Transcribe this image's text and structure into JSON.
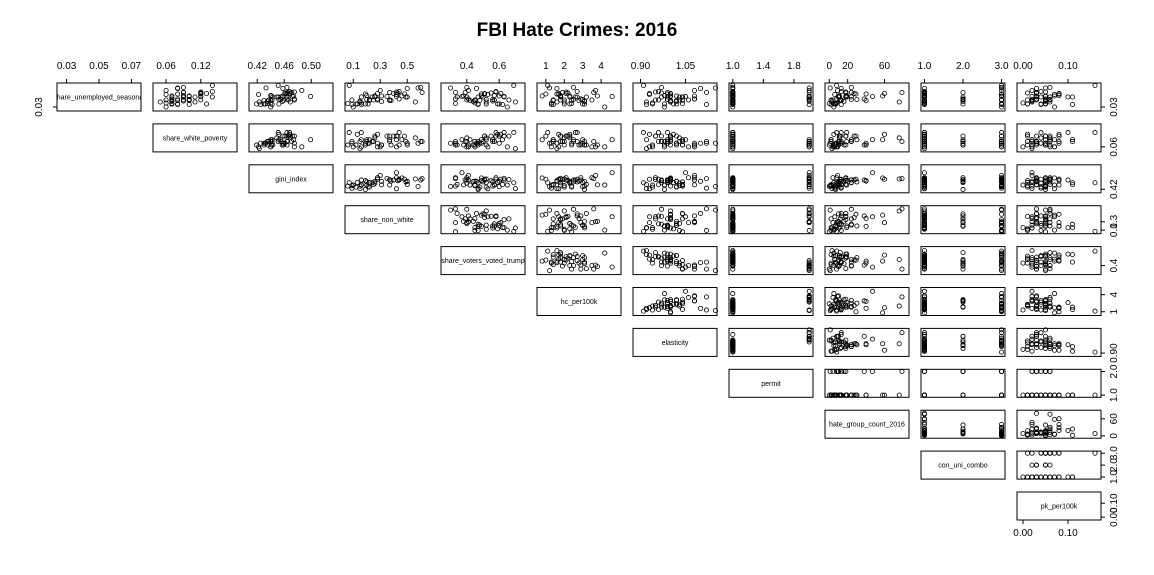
{
  "chart_data": {
    "type": "scatter",
    "subtype": "scatterplot-matrix-upper-triangle",
    "title": "FBI Hate Crimes: 2016",
    "variables": [
      {
        "name": "share_unemployed_seasonal",
        "display": "share_unemployed_seasonal",
        "range": [
          0.025,
          0.075
        ],
        "ticks": [
          0.03,
          0.05,
          0.07
        ],
        "tick_labels": [
          "0.03",
          "0.05",
          "0.07"
        ]
      },
      {
        "name": "share_white_poverty",
        "display": "share_white_poverty",
        "range": [
          0.04,
          0.18
        ],
        "ticks": [
          0.06,
          0.12
        ],
        "tick_labels": [
          "0.06",
          "0.12"
        ]
      },
      {
        "name": "gini_index",
        "display": "gini_index",
        "range": [
          0.41,
          0.53
        ],
        "ticks": [
          0.42,
          0.46,
          0.5
        ],
        "tick_labels": [
          "0.42",
          "0.46",
          "0.50"
        ]
      },
      {
        "name": "share_non_white",
        "display": "share_non_white",
        "range": [
          0.05,
          0.65
        ],
        "ticks": [
          0.1,
          0.3,
          0.5
        ],
        "tick_labels": [
          "0.1",
          "0.3",
          "0.5"
        ]
      },
      {
        "name": "share_voters_voted_trump",
        "display": "share_voters_voted_trump",
        "range": [
          0.25,
          0.75
        ],
        "ticks": [
          0.4,
          0.6
        ],
        "tick_labels": [
          "0.4",
          "0.6"
        ]
      },
      {
        "name": "hc_per100k",
        "display": "hc_per100k",
        "range": [
          0.6,
          5.0
        ],
        "ticks": [
          1,
          2,
          3,
          4
        ],
        "tick_labels": [
          "1",
          "2",
          "3",
          "4"
        ]
      },
      {
        "name": "elasticity",
        "display": "elasticity",
        "range": [
          0.88,
          1.15
        ],
        "ticks": [
          0.9,
          1.05
        ],
        "tick_labels": [
          "0.90",
          "1.05"
        ]
      },
      {
        "name": "permit",
        "display": "permit",
        "range": [
          0.97,
          2.03
        ],
        "ticks": [
          1.0,
          1.4,
          1.8
        ],
        "tick_labels": [
          "1.0",
          "1.4",
          "1.8"
        ]
      },
      {
        "name": "hate_group_count_2016",
        "display": "hate_group_count_2016",
        "range": [
          -3,
          85
        ],
        "ticks": [
          0,
          20,
          60
        ],
        "tick_labels": [
          "0",
          "20",
          "60"
        ]
      },
      {
        "name": "con_uni_combo",
        "display": "con_uni_combo",
        "range": [
          0.95,
          3.05
        ],
        "ticks": [
          1.0,
          2.0,
          3.0
        ],
        "tick_labels": [
          "1.0",
          "2.0",
          "3.0"
        ]
      },
      {
        "name": "pk_per100k",
        "display": "pk_per100k",
        "range": [
          -0.01,
          0.17
        ],
        "ticks": [
          0.0,
          0.1
        ],
        "tick_labels": [
          "0.00",
          "0.10"
        ]
      }
    ],
    "right_axis_ticks": [
      {
        "variable": "share_unemployed_seasonal",
        "ticks": [
          0.03
        ],
        "tick_labels": [
          "0.03"
        ]
      },
      {
        "variable": "share_white_poverty",
        "ticks": [
          0.06
        ],
        "tick_labels": [
          "0.06"
        ]
      },
      {
        "variable": "gini_index",
        "ticks": [
          0.42
        ],
        "tick_labels": [
          "0.42"
        ]
      },
      {
        "variable": "share_non_white",
        "ticks": [
          0.1,
          0.3
        ],
        "tick_labels": [
          "0.1",
          "0.3"
        ]
      },
      {
        "variable": "share_voters_voted_trump",
        "ticks": [
          0.4
        ],
        "tick_labels": [
          "0.4"
        ]
      },
      {
        "variable": "hc_per100k",
        "ticks": [
          1,
          4
        ],
        "tick_labels": [
          "1",
          "4"
        ]
      },
      {
        "variable": "elasticity",
        "ticks": [
          0.9
        ],
        "tick_labels": [
          "0.90"
        ]
      },
      {
        "variable": "permit",
        "ticks": [
          1.0,
          2.0
        ],
        "tick_labels": [
          "1.0",
          "2.0"
        ]
      },
      {
        "variable": "hate_group_count_2016",
        "ticks": [
          0,
          60
        ],
        "tick_labels": [
          "0",
          "60"
        ]
      },
      {
        "variable": "con_uni_combo",
        "ticks": [
          1.0,
          2.0,
          3.0
        ],
        "tick_labels": [
          "1.0",
          "2.0",
          "3.0"
        ]
      },
      {
        "variable": "pk_per100k",
        "ticks": [
          0.0,
          0.1
        ],
        "tick_labels": [
          "0.00",
          "0.10"
        ]
      }
    ],
    "left_axis_ticks": [
      {
        "variable": "share_unemployed_seasonal",
        "ticks": [
          0.03
        ],
        "tick_labels": [
          "0.03"
        ]
      }
    ],
    "bottom_axis_ticks": [
      {
        "variable": "pk_per100k",
        "ticks": [
          0.0,
          0.1
        ],
        "tick_labels": [
          "0.00",
          "0.10"
        ]
      }
    ],
    "observations": [
      [
        0.051,
        0.12,
        0.472,
        0.35,
        0.63,
        1.8,
        1.0,
        1,
        18,
        3,
        0.05
      ],
      [
        0.055,
        0.06,
        0.422,
        0.42,
        0.53,
        1.7,
        0.93,
        1,
        6,
        1,
        0.07
      ],
      [
        0.05,
        0.09,
        0.455,
        0.49,
        0.5,
        2.7,
        1.04,
        2,
        10,
        2,
        0.03
      ],
      [
        0.052,
        0.12,
        0.458,
        0.26,
        0.6,
        2.3,
        1.02,
        1,
        11,
        3,
        0.05
      ],
      [
        0.059,
        0.09,
        0.471,
        0.61,
        0.33,
        3.6,
        1.12,
        2,
        79,
        1,
        0.03
      ],
      [
        0.041,
        0.07,
        0.457,
        0.31,
        0.44,
        3.1,
        1.02,
        2,
        16,
        2,
        0.05
      ],
      [
        0.063,
        0.06,
        0.486,
        0.3,
        0.41,
        3.7,
        1.08,
        2,
        9,
        3,
        0.02
      ],
      [
        0.043,
        0.1,
        0.44,
        0.37,
        0.42,
        1.4,
        1.04,
        1,
        2,
        1,
        0.05
      ],
      [
        0.052,
        0.1,
        0.474,
        0.46,
        0.49,
        0.8,
        1.0,
        1,
        58,
        1,
        0.07
      ],
      [
        0.056,
        0.12,
        0.468,
        0.48,
        0.51,
        1.0,
        1.0,
        1,
        29,
        3,
        0.08
      ],
      [
        0.068,
        0.08,
        0.433,
        0.58,
        0.3,
        1.2,
        1.15,
        2,
        1,
        3,
        0.05
      ],
      [
        0.036,
        0.13,
        0.452,
        0.13,
        0.59,
        2.3,
        1.01,
        1,
        5,
        1,
        0.01
      ],
      [
        0.059,
        0.09,
        0.465,
        0.37,
        0.39,
        1.9,
        0.99,
        1,
        24,
        2,
        0.03
      ],
      [
        0.053,
        0.09,
        0.44,
        0.2,
        0.57,
        1.8,
        0.98,
        1,
        19,
        1,
        0.08
      ],
      [
        0.036,
        0.07,
        0.43,
        0.12,
        0.52,
        2.0,
        0.94,
        1,
        6,
        1,
        0.01
      ],
      [
        0.044,
        0.09,
        0.442,
        0.25,
        0.57,
        1.4,
        0.96,
        1,
        13,
        1,
        0.03
      ],
      [
        0.05,
        0.14,
        0.464,
        0.16,
        0.63,
        2.6,
        0.99,
        1,
        19,
        1,
        0.1
      ],
      [
        0.06,
        0.12,
        0.475,
        0.42,
        0.58,
        2.1,
        0.95,
        1,
        18,
        1,
        0.05
      ],
      [
        0.044,
        0.09,
        0.437,
        0.09,
        0.45,
        2.0,
        1.03,
        1,
        2,
        3,
        0.01
      ],
      [
        0.05,
        0.07,
        0.443,
        0.5,
        0.34,
        3.2,
        1.04,
        2,
        18,
        1,
        0.06
      ],
      [
        0.046,
        0.08,
        0.475,
        0.28,
        0.33,
        2.9,
        1.08,
        2,
        8,
        2,
        0.03
      ],
      [
        0.05,
        0.09,
        0.451,
        0.24,
        0.47,
        1.8,
        0.97,
        1,
        24,
        1,
        0.11
      ],
      [
        0.038,
        0.06,
        0.44,
        0.16,
        0.45,
        1.3,
        0.94,
        1,
        8,
        1,
        0.0
      ],
      [
        0.061,
        0.14,
        0.468,
        0.44,
        0.58,
        2.7,
        0.96,
        1,
        13,
        1,
        0.04
      ],
      [
        0.045,
        0.1,
        0.455,
        0.2,
        0.56,
        2.5,
        0.99,
        1,
        30,
        3,
        0.06
      ],
      [
        0.042,
        0.09,
        0.435,
        0.15,
        0.56,
        3.1,
        1.0,
        1,
        11,
        1,
        0.02
      ],
      [
        0.036,
        0.08,
        0.432,
        0.21,
        0.6,
        3.0,
        1.02,
        1,
        7,
        3,
        0.04
      ],
      [
        0.067,
        0.08,
        0.458,
        0.5,
        0.46,
        1.6,
        1.1,
        1,
        13,
        1,
        0.03
      ],
      [
        0.035,
        0.08,
        0.425,
        0.09,
        0.47,
        1.3,
        1.12,
        2,
        13,
        3,
        0.04
      ],
      [
        0.046,
        0.07,
        0.464,
        0.44,
        0.41,
        2.9,
        1.08,
        2,
        38,
        2,
        0.05
      ],
      [
        0.069,
        0.09,
        0.464,
        0.6,
        0.4,
        2.5,
        0.97,
        1,
        24,
        3,
        0.06
      ],
      [
        0.051,
        0.1,
        0.499,
        0.42,
        0.37,
        4.6,
        1.05,
        2,
        47,
        1,
        0.02
      ],
      [
        0.057,
        0.12,
        0.464,
        0.4,
        0.51,
        2.1,
        1.0,
        1,
        27,
        1,
        0.03
      ],
      [
        0.03,
        0.06,
        0.44,
        0.1,
        0.65,
        4.2,
        0.98,
        1,
        5,
        3,
        0.07
      ],
      [
        0.045,
        0.1,
        0.452,
        0.22,
        0.52,
        3.0,
        0.99,
        1,
        24,
        2,
        0.02
      ],
      [
        0.044,
        0.12,
        0.466,
        0.37,
        0.66,
        1.8,
        0.95,
        1,
        12,
        2,
        0.06
      ],
      [
        0.05,
        0.11,
        0.449,
        0.26,
        0.4,
        2.3,
        1.03,
        1,
        11,
        1,
        0.04
      ],
      [
        0.056,
        0.08,
        0.461,
        0.19,
        0.49,
        1.6,
        0.99,
        1,
        40,
        3,
        0.08
      ],
      [
        0.044,
        0.06,
        0.475,
        0.28,
        0.4,
        3.5,
        1.06,
        2,
        4,
        3,
        0.06
      ],
      [
        0.058,
        0.12,
        0.461,
        0.43,
        0.55,
        2.2,
        0.97,
        1,
        18,
        1,
        0.01
      ],
      [
        0.035,
        0.1,
        0.442,
        0.16,
        0.62,
        1.4,
        0.92,
        1,
        2,
        1,
        0.11
      ],
      [
        0.057,
        0.13,
        0.468,
        0.28,
        0.61,
        1.7,
        0.93,
        1,
        60,
        1,
        0.08
      ],
      [
        0.04,
        0.11,
        0.469,
        0.56,
        0.52,
        2.0,
        1.0,
        1,
        76,
        1,
        0.06
      ],
      [
        0.036,
        0.07,
        0.419,
        0.19,
        0.47,
        3.1,
        0.98,
        1,
        7,
        2,
        0.05
      ],
      [
        0.037,
        0.07,
        0.435,
        0.06,
        0.33,
        2.4,
        1.04,
        1,
        0,
        3,
        0.05
      ],
      [
        0.043,
        0.07,
        0.459,
        0.38,
        0.45,
        2.8,
        1.0,
        1,
        40,
        1,
        0.02
      ],
      [
        0.052,
        0.07,
        0.441,
        0.31,
        0.38,
        3.8,
        1.08,
        2,
        10,
        1,
        0.03
      ],
      [
        0.073,
        0.14,
        0.451,
        0.07,
        0.69,
        1.1,
        0.91,
        1,
        8,
        3,
        0.16
      ],
      [
        0.043,
        0.08,
        0.43,
        0.22,
        0.48,
        2.4,
        1.02,
        1,
        13,
        1,
        0.05
      ],
      [
        0.04,
        0.05,
        0.423,
        0.15,
        0.7,
        1.6,
        0.92,
        1,
        3,
        1,
        0.02
      ]
    ]
  }
}
